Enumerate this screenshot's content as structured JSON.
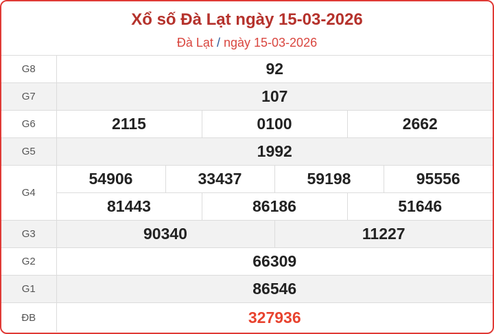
{
  "header": {
    "title": "Xổ số Đà Lạt ngày 15-03-2026",
    "crumb_place": "Đà Lạt",
    "crumb_sep": "/",
    "crumb_date": "ngày 15-03-2026"
  },
  "prizes": {
    "g8": {
      "label": "G8",
      "values": [
        "92"
      ]
    },
    "g7": {
      "label": "G7",
      "values": [
        "107"
      ]
    },
    "g6": {
      "label": "G6",
      "values": [
        "2115",
        "0100",
        "2662"
      ]
    },
    "g5": {
      "label": "G5",
      "values": [
        "1992"
      ]
    },
    "g4": {
      "label": "G4",
      "values": [
        "54906",
        "33437",
        "59198",
        "95556",
        "81443",
        "86186",
        "51646"
      ]
    },
    "g3": {
      "label": "G3",
      "values": [
        "90340",
        "11227"
      ]
    },
    "g2": {
      "label": "G2",
      "values": [
        "66309"
      ]
    },
    "g1": {
      "label": "G1",
      "values": [
        "86546"
      ]
    },
    "db": {
      "label": "ĐB",
      "values": [
        "327936"
      ]
    }
  },
  "colors": {
    "border": "#e03a36",
    "title": "#b5322c",
    "special": "#e8432f",
    "stripe": "#f2f2f2"
  }
}
